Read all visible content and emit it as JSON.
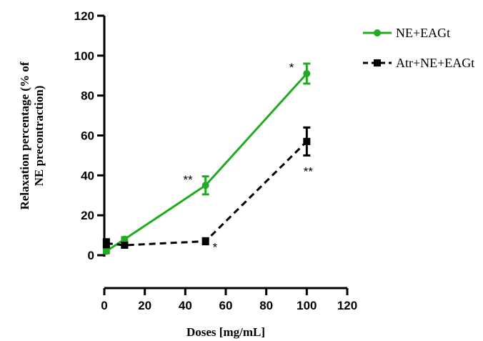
{
  "chart_data": {
    "type": "line",
    "title": "",
    "xlabel": "Doses [mg/mL]",
    "ylabel_lines": [
      "Relaxation percentage (% of",
      "NE precontraction)"
    ],
    "xlim": [
      0,
      120
    ],
    "ylim": [
      0,
      120
    ],
    "xticks": [
      0,
      20,
      40,
      60,
      80,
      100,
      120
    ],
    "yticks": [
      0,
      20,
      40,
      60,
      80,
      100,
      120
    ],
    "legend_position": "top-right",
    "grid": false,
    "series": [
      {
        "name": "NE+EAGt",
        "color": "#22aa22",
        "line_style": "solid",
        "marker": "circle",
        "x": [
          1,
          10,
          50,
          100
        ],
        "y": [
          2,
          8,
          35,
          91
        ],
        "err": [
          1,
          1,
          4.5,
          5
        ],
        "annotations": [
          {
            "x": 50,
            "text": "**",
            "side": "left"
          },
          {
            "x": 100,
            "text": "*",
            "side": "left"
          }
        ]
      },
      {
        "name": "Atr+NE+EAGt",
        "color": "#000000",
        "line_style": "dashed",
        "marker": "square",
        "x": [
          1,
          10,
          50,
          100
        ],
        "y": [
          6,
          5,
          7,
          57
        ],
        "err": [
          2,
          1,
          1.5,
          7
        ],
        "annotations": [
          {
            "x": 50,
            "text": "*",
            "side": "right"
          },
          {
            "x": 100,
            "text": "**",
            "side": "below"
          }
        ]
      }
    ]
  }
}
